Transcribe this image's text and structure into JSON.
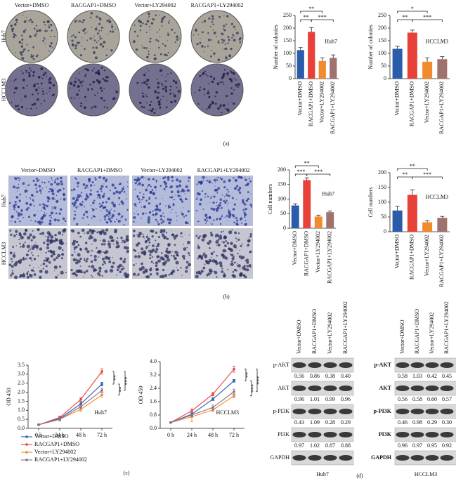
{
  "panel_labels": [
    "(a)",
    "(b)",
    "(c)",
    "(d)"
  ],
  "colony_assay": {
    "columns": [
      "Vector+DMSO",
      "RACGAP1+DMSO",
      "Vector+LY294002",
      "RACGAP1+LY294002"
    ],
    "rows": [
      "Huh7",
      "HCCLM3"
    ]
  },
  "transwell": {
    "columns": [
      "Vector+DMSO",
      "RACGAP1+DMSO",
      "Vector+LY294002",
      "RACGAP1+LY294002"
    ],
    "rows": [
      "Huh7",
      "HCCLM3"
    ]
  },
  "chart_data": [
    {
      "type": "bar",
      "ylabel": "Number of colonies",
      "annotation": "Huh7",
      "categories": [
        "Vector+DMSO",
        "RACGAP1+DMSO",
        "Vector+LY294002",
        "RACGAP1+LY294002"
      ],
      "values": [
        113,
        185,
        70,
        82
      ],
      "errors": [
        10,
        17,
        12,
        12
      ],
      "colors": [
        "#2a5caa",
        "#e8413a",
        "#f28a2e",
        "#a0726d"
      ],
      "ylim": [
        0,
        250
      ],
      "yticks": [
        0,
        50,
        100,
        150,
        200,
        250
      ],
      "comparisons": [
        {
          "pair": [
            0,
            2
          ],
          "label": "**"
        },
        {
          "pair": [
            0,
            1
          ],
          "label": "**"
        },
        {
          "pair": [
            1,
            3
          ],
          "label": "***"
        }
      ]
    },
    {
      "type": "bar",
      "ylabel": "Number of colonies",
      "annotation": "HCCLM3",
      "categories": [
        "Vector+DMSO",
        "RACGAP1+DMSO",
        "Vector+LY294002",
        "RACGAP1+LY294002"
      ],
      "values": [
        118,
        182,
        67,
        77
      ],
      "errors": [
        10,
        10,
        15,
        10
      ],
      "colors": [
        "#2a5caa",
        "#e8413a",
        "#f28a2e",
        "#a0726d"
      ],
      "ylim": [
        0,
        250
      ],
      "yticks": [
        0,
        50,
        100,
        150,
        200,
        250
      ],
      "comparisons": [
        {
          "pair": [
            0,
            2
          ],
          "label": "*"
        },
        {
          "pair": [
            0,
            1
          ],
          "label": "**"
        },
        {
          "pair": [
            1,
            3
          ],
          "label": "***"
        }
      ]
    },
    {
      "type": "bar",
      "ylabel": "Cell numbers",
      "annotation": "Huh7",
      "categories": [
        "Vector+DMSO",
        "RACGAP1+DMSO",
        "Vector+LY294002",
        "RACGAP1+LY294002"
      ],
      "values": [
        78,
        165,
        40,
        55
      ],
      "errors": [
        6,
        8,
        5,
        4
      ],
      "colors": [
        "#2a5caa",
        "#e8413a",
        "#f28a2e",
        "#a0726d"
      ],
      "ylim": [
        0,
        200
      ],
      "yticks": [
        0,
        50,
        100,
        150,
        200
      ],
      "comparisons": [
        {
          "pair": [
            0,
            2
          ],
          "label": "**"
        },
        {
          "pair": [
            0,
            1
          ],
          "label": "***"
        },
        {
          "pair": [
            1,
            3
          ],
          "label": "***"
        }
      ]
    },
    {
      "type": "bar",
      "ylabel": "Cell numbers",
      "annotation": "HCCLM3",
      "categories": [
        "Vector+DMSO",
        "RACGAP1+DMSO",
        "Vector+LY294002",
        "RACGAP1+LY294002"
      ],
      "values": [
        72,
        125,
        32,
        47
      ],
      "errors": [
        14,
        17,
        6,
        5
      ],
      "colors": [
        "#2a5caa",
        "#e8413a",
        "#f28a2e",
        "#a0726d"
      ],
      "ylim": [
        0,
        200
      ],
      "yticks": [
        0,
        50,
        100,
        150,
        200
      ],
      "comparisons": [
        {
          "pair": [
            0,
            2
          ],
          "label": "**"
        },
        {
          "pair": [
            0,
            1
          ],
          "label": "**"
        },
        {
          "pair": [
            1,
            3
          ],
          "label": "***"
        }
      ]
    },
    {
      "type": "line",
      "ylabel": "OD 450",
      "annotation": "Huh7",
      "categories": [
        "0 h",
        "24 h",
        "48 h",
        "72 h"
      ],
      "series": [
        {
          "name": "Vector+DMSO",
          "color": "#2a5caa",
          "values": [
            0.2,
            0.55,
            1.35,
            2.45
          ],
          "errors": [
            0.03,
            0.08,
            0.1,
            0.1
          ]
        },
        {
          "name": "RACGAP1+DMSO",
          "color": "#e8413a",
          "values": [
            0.2,
            0.6,
            1.6,
            3.15
          ],
          "errors": [
            0.03,
            0.08,
            0.1,
            0.15
          ]
        },
        {
          "name": "Vector+LY294002",
          "color": "#f28a2e",
          "values": [
            0.2,
            0.5,
            1.05,
            1.85
          ],
          "errors": [
            0.03,
            0.08,
            0.1,
            0.12
          ]
        },
        {
          "name": "RACGAP1+LY294002",
          "color": "#8a6f8f",
          "values": [
            0.2,
            0.5,
            1.2,
            2.1
          ],
          "errors": [
            0.03,
            0.08,
            0.1,
            0.12
          ]
        }
      ],
      "ylim": [
        0,
        3.5
      ],
      "yticks": [
        {
          "value": 0,
          "label": "0.0"
        },
        0.5,
        {
          "value": 1,
          "label": "1.0"
        },
        1.5,
        {
          "value": 2,
          "label": "2.0"
        },
        2.5,
        {
          "value": 3,
          "label": "3.0"
        },
        3.5
      ],
      "comparisons": [
        {
          "pair": [
            1,
            0
          ],
          "label": "**"
        },
        {
          "pair": [
            0,
            2
          ],
          "label": "**"
        },
        {
          "pair": [
            1,
            3
          ],
          "label": "***"
        }
      ]
    },
    {
      "type": "line",
      "ylabel": "OD 450",
      "annotation": "HCCLM3",
      "categories": [
        "0 h",
        "24 h",
        "48 h",
        "72 h"
      ],
      "series": [
        {
          "name": "Vector+DMSO",
          "color": "#2a5caa",
          "values": [
            0.35,
            0.85,
            1.75,
            2.85
          ],
          "errors": [
            0.03,
            0.1,
            0.08,
            0.08
          ]
        },
        {
          "name": "RACGAP1+DMSO",
          "color": "#e8413a",
          "values": [
            0.35,
            1.05,
            2.05,
            3.55
          ],
          "errors": [
            0.03,
            0.12,
            0.1,
            0.18
          ]
        },
        {
          "name": "Vector+LY294002",
          "color": "#f28a2e",
          "values": [
            0.35,
            0.7,
            1.1,
            1.95
          ],
          "errors": [
            0.03,
            0.3,
            0.1,
            0.12
          ]
        },
        {
          "name": "RACGAP1+LY294002",
          "color": "#8a6f8f",
          "values": [
            0.35,
            0.8,
            1.25,
            2.2
          ],
          "errors": [
            0.03,
            0.12,
            0.15,
            0.15
          ]
        }
      ],
      "ylim": [
        0,
        4
      ],
      "yticks": [
        {
          "value": 0,
          "label": "0.0"
        },
        0.8,
        1.6,
        2.4,
        3.2,
        {
          "value": 4,
          "label": "4.0"
        }
      ],
      "comparisons": [
        {
          "pair": [
            1,
            0
          ],
          "label": "**"
        },
        {
          "pair": [
            0,
            2
          ],
          "label": "***"
        },
        {
          "pair": [
            1,
            3
          ],
          "label": "***"
        }
      ]
    }
  ],
  "blots": [
    {
      "cell_line": "Huh7",
      "columns": [
        "Vector+DMSO",
        "RACGAP1+DMSO",
        "Vector+LY294002",
        "RACGAP1+LY294002"
      ],
      "rows": [
        {
          "label": "p-AKT",
          "values": [
            "0.56",
            "0.86",
            "0.38",
            "0.40"
          ]
        },
        {
          "label": "AKT",
          "values": [
            "0.96",
            "1.01",
            "0.99",
            "0.96"
          ]
        },
        {
          "label": "p-PI3K",
          "values": [
            "0.43",
            "1.09",
            "0.28",
            "0.29"
          ]
        },
        {
          "label": "PI3K",
          "values": [
            "0.97",
            "1.02",
            "0.87",
            "0.88"
          ]
        },
        {
          "label": "GAPDH"
        }
      ]
    },
    {
      "cell_line": "HCCLM3",
      "columns": [
        "Vector+DMSO",
        "RACGAP1+DMSO",
        "Vector+LY294002",
        "RACGAP1+LY294002"
      ],
      "rows": [
        {
          "label": "p-AKT",
          "values": [
            "0.58",
            "1.03",
            "0.42",
            "0.45"
          ]
        },
        {
          "label": "AKT",
          "values": [
            "0.56",
            "0.58",
            "0.60",
            "0.57"
          ]
        },
        {
          "label": "p-PI3K",
          "values": [
            "0.46",
            "0.98",
            "0.29",
            "0.30"
          ]
        },
        {
          "label": "PI3K",
          "values": [
            "0.96",
            "0.97",
            "0.95",
            "0.92"
          ]
        },
        {
          "label": "GAPDH"
        }
      ]
    }
  ]
}
